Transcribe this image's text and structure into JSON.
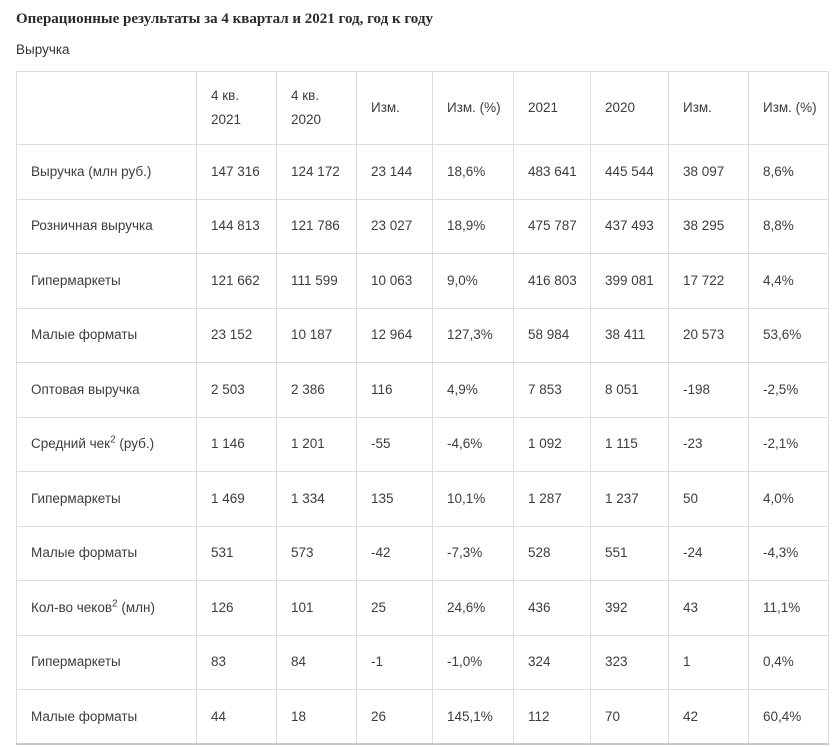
{
  "chart_data": {
    "type": "table",
    "title": "Операционные результаты за 4 квартал и 2021 год, год к году",
    "subtitle": "Выручка",
    "columns": [
      "",
      "4 кв. 2021",
      "4 кв. 2020",
      "Изм.",
      "Изм. (%)",
      "2021",
      "2020",
      "Изм.",
      "Изм. (%)"
    ],
    "rows": [
      {
        "label": "Выручка (млн руб.)",
        "sup": "",
        "suffix": "",
        "values": [
          "147 316",
          "124 172",
          "23 144",
          "18,6%",
          "483 641",
          "445 544",
          "38 097",
          "8,6%"
        ]
      },
      {
        "label": "Розничная выручка",
        "sup": "",
        "suffix": "",
        "values": [
          "144 813",
          "121 786",
          "23 027",
          "18,9%",
          "475 787",
          "437 493",
          "38 295",
          "8,8%"
        ]
      },
      {
        "label": "Гипермаркеты",
        "sup": "",
        "suffix": "",
        "values": [
          "121 662",
          "111 599",
          "10 063",
          "9,0%",
          "416 803",
          "399 081",
          "17 722",
          "4,4%"
        ]
      },
      {
        "label": "Малые форматы",
        "sup": "",
        "suffix": "",
        "values": [
          "23 152",
          "10 187",
          "12 964",
          "127,3%",
          "58 984",
          "38 411",
          "20 573",
          "53,6%"
        ]
      },
      {
        "label": "Оптовая выручка",
        "sup": "",
        "suffix": "",
        "values": [
          "2 503",
          "2 386",
          "116",
          "4,9%",
          "7 853",
          "8 051",
          "-198",
          "-2,5%"
        ]
      },
      {
        "label": "Средний чек",
        "sup": "2",
        "suffix": " (руб.)",
        "values": [
          "1 146",
          "1 201",
          "-55",
          "-4,6%",
          "1 092",
          "1 115",
          "-23",
          "-2,1%"
        ]
      },
      {
        "label": "Гипермаркеты",
        "sup": "",
        "suffix": "",
        "values": [
          "1 469",
          "1 334",
          "135",
          "10,1%",
          "1 287",
          "1 237",
          "50",
          "4,0%"
        ]
      },
      {
        "label": "Малые форматы",
        "sup": "",
        "suffix": "",
        "values": [
          "531",
          "573",
          "-42",
          "-7,3%",
          "528",
          "551",
          "-24",
          "-4,3%"
        ]
      },
      {
        "label": "Кол-во чеков",
        "sup": "2",
        "suffix": " (млн)",
        "values": [
          "126",
          "101",
          "25",
          "24,6%",
          "436",
          "392",
          "43",
          "11,1%"
        ]
      },
      {
        "label": "Гипермаркеты",
        "sup": "",
        "suffix": "",
        "values": [
          "83",
          "84",
          "-1",
          "-1,0%",
          "324",
          "323",
          "1",
          "0,4%"
        ]
      },
      {
        "label": "Малые форматы",
        "sup": "",
        "suffix": "",
        "values": [
          "44",
          "18",
          "26",
          "145,1%",
          "112",
          "70",
          "42",
          "60,4%"
        ]
      }
    ]
  },
  "colors": {
    "background": "#ffffff",
    "text": "#3d3d3d",
    "title": "#2b2b2b",
    "border": "#dcdcdc",
    "table_bottom_border": "#c9c9c9"
  }
}
